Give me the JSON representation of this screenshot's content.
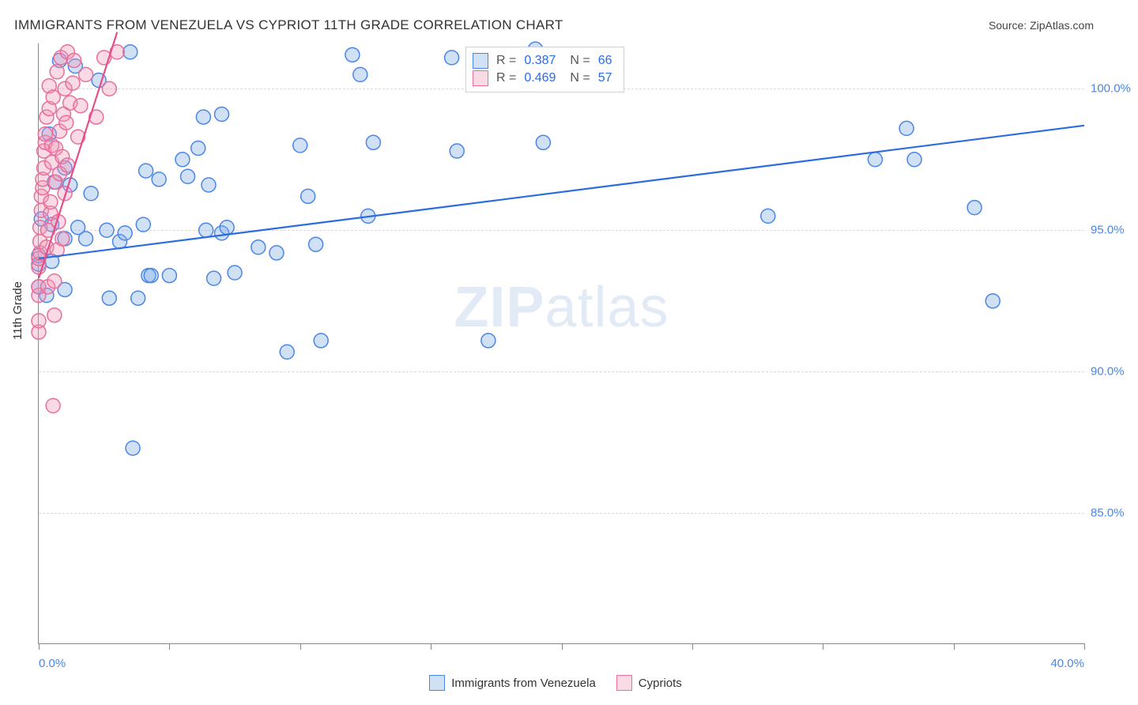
{
  "title": "IMMIGRANTS FROM VENEZUELA VS CYPRIOT 11TH GRADE CORRELATION CHART",
  "source_prefix": "Source: ",
  "source_name": "ZipAtlas.com",
  "watermark_bold": "ZIP",
  "watermark_light": "atlas",
  "ylabel": "11th Grade",
  "chart": {
    "type": "scatter",
    "background_color": "#ffffff",
    "grid_color": "#d9d9d9",
    "axis_color": "#888888",
    "xlim": [
      0,
      40
    ],
    "ylim": [
      80.4,
      101.6
    ],
    "ytick_values": [
      85.0,
      90.0,
      95.0,
      100.0
    ],
    "ytick_labels": [
      "85.0%",
      "90.0%",
      "95.0%",
      "100.0%"
    ],
    "ytick_color": "#4a86e8",
    "xtick_values": [
      0,
      5,
      10,
      15,
      20,
      25,
      30,
      35,
      40
    ],
    "xtick_label_left": "0.0%",
    "xtick_label_right": "40.0%",
    "marker_radius": 9,
    "marker_stroke_width": 1.5,
    "trend_stroke_width": 2.2,
    "series": [
      {
        "name": "Immigrants from Venezuela",
        "fill": "rgba(120,170,230,0.35)",
        "stroke": "#4a86e8",
        "trend_color": "#2d6cdf",
        "R": "0.387",
        "N": "66",
        "trend": {
          "x1": 0.0,
          "y1": 94.0,
          "x2": 40.0,
          "y2": 98.7
        },
        "points": [
          [
            0.0,
            93.8
          ],
          [
            0.0,
            94.1
          ],
          [
            0.0,
            93.0
          ],
          [
            0.1,
            95.4
          ],
          [
            0.3,
            92.7
          ],
          [
            0.5,
            93.9
          ],
          [
            0.6,
            96.7
          ],
          [
            0.5,
            95.2
          ],
          [
            0.4,
            98.4
          ],
          [
            0.8,
            101.0
          ],
          [
            1.0,
            92.9
          ],
          [
            1.0,
            94.7
          ],
          [
            1.2,
            96.6
          ],
          [
            1.0,
            97.2
          ],
          [
            1.4,
            100.8
          ],
          [
            1.5,
            95.1
          ],
          [
            1.8,
            94.7
          ],
          [
            2.0,
            96.3
          ],
          [
            2.3,
            100.3
          ],
          [
            2.6,
            95.0
          ],
          [
            2.7,
            92.6
          ],
          [
            3.1,
            94.6
          ],
          [
            3.3,
            94.9
          ],
          [
            3.5,
            101.3
          ],
          [
            3.6,
            87.3
          ],
          [
            3.8,
            92.6
          ],
          [
            4.0,
            95.2
          ],
          [
            4.1,
            97.1
          ],
          [
            4.2,
            93.4
          ],
          [
            4.3,
            93.4
          ],
          [
            4.6,
            96.8
          ],
          [
            5.0,
            93.4
          ],
          [
            5.5,
            97.5
          ],
          [
            5.7,
            96.9
          ],
          [
            6.1,
            97.9
          ],
          [
            6.3,
            99.0
          ],
          [
            6.4,
            95.0
          ],
          [
            6.5,
            96.6
          ],
          [
            6.7,
            93.3
          ],
          [
            7.0,
            94.9
          ],
          [
            7.0,
            99.1
          ],
          [
            7.2,
            95.1
          ],
          [
            7.5,
            93.5
          ],
          [
            8.4,
            94.4
          ],
          [
            9.1,
            94.2
          ],
          [
            9.5,
            90.7
          ],
          [
            10.0,
            98.0
          ],
          [
            10.3,
            96.2
          ],
          [
            10.6,
            94.5
          ],
          [
            10.8,
            91.1
          ],
          [
            12.0,
            101.2
          ],
          [
            12.3,
            100.5
          ],
          [
            12.6,
            95.5
          ],
          [
            12.8,
            98.1
          ],
          [
            15.8,
            101.1
          ],
          [
            16.0,
            97.8
          ],
          [
            17.2,
            91.1
          ],
          [
            19.0,
            101.4
          ],
          [
            19.3,
            98.1
          ],
          [
            22.0,
            101.0
          ],
          [
            27.9,
            95.5
          ],
          [
            32.0,
            97.5
          ],
          [
            33.2,
            98.6
          ],
          [
            33.5,
            97.5
          ],
          [
            35.8,
            95.8
          ],
          [
            36.5,
            92.5
          ]
        ]
      },
      {
        "name": "Cypriots",
        "fill": "rgba(240,150,180,0.35)",
        "stroke": "#e86f9b",
        "trend_color": "#e64d88",
        "R": "0.469",
        "N": "57",
        "trend": {
          "x1": 0.0,
          "y1": 93.3,
          "x2": 3.0,
          "y2": 102.0
        },
        "points": [
          [
            0.0,
            91.4
          ],
          [
            0.0,
            91.8
          ],
          [
            0.0,
            92.7
          ],
          [
            0.0,
            93.0
          ],
          [
            0.0,
            93.7
          ],
          [
            0.0,
            94.0
          ],
          [
            0.05,
            94.2
          ],
          [
            0.05,
            94.6
          ],
          [
            0.05,
            95.1
          ],
          [
            0.1,
            95.7
          ],
          [
            0.1,
            96.2
          ],
          [
            0.15,
            96.5
          ],
          [
            0.15,
            96.8
          ],
          [
            0.2,
            97.2
          ],
          [
            0.2,
            97.8
          ],
          [
            0.25,
            98.1
          ],
          [
            0.25,
            98.4
          ],
          [
            0.3,
            99.0
          ],
          [
            0.3,
            94.4
          ],
          [
            0.35,
            93.0
          ],
          [
            0.35,
            95.0
          ],
          [
            0.4,
            99.3
          ],
          [
            0.4,
            100.1
          ],
          [
            0.45,
            95.6
          ],
          [
            0.45,
            96.0
          ],
          [
            0.5,
            97.4
          ],
          [
            0.5,
            98.0
          ],
          [
            0.55,
            99.7
          ],
          [
            0.55,
            88.8
          ],
          [
            0.6,
            92.0
          ],
          [
            0.6,
            93.2
          ],
          [
            0.65,
            96.7
          ],
          [
            0.65,
            97.9
          ],
          [
            0.7,
            94.3
          ],
          [
            0.7,
            100.6
          ],
          [
            0.75,
            95.3
          ],
          [
            0.8,
            97.0
          ],
          [
            0.8,
            98.5
          ],
          [
            0.85,
            101.1
          ],
          [
            0.9,
            94.7
          ],
          [
            0.9,
            97.6
          ],
          [
            0.95,
            99.1
          ],
          [
            1.0,
            100.0
          ],
          [
            1.0,
            96.3
          ],
          [
            1.05,
            98.8
          ],
          [
            1.1,
            101.3
          ],
          [
            1.1,
            97.3
          ],
          [
            1.2,
            99.5
          ],
          [
            1.3,
            100.2
          ],
          [
            1.35,
            101.0
          ],
          [
            1.5,
            98.3
          ],
          [
            1.6,
            99.4
          ],
          [
            1.8,
            100.5
          ],
          [
            2.2,
            99.0
          ],
          [
            2.5,
            101.1
          ],
          [
            2.7,
            100.0
          ],
          [
            3.0,
            101.3
          ]
        ]
      }
    ]
  },
  "bottom_legend": {
    "label1": "Immigrants from Venezuela",
    "label2": "Cypriots"
  },
  "stats_legend": {
    "r_label": "R =",
    "n_label": "N ="
  }
}
